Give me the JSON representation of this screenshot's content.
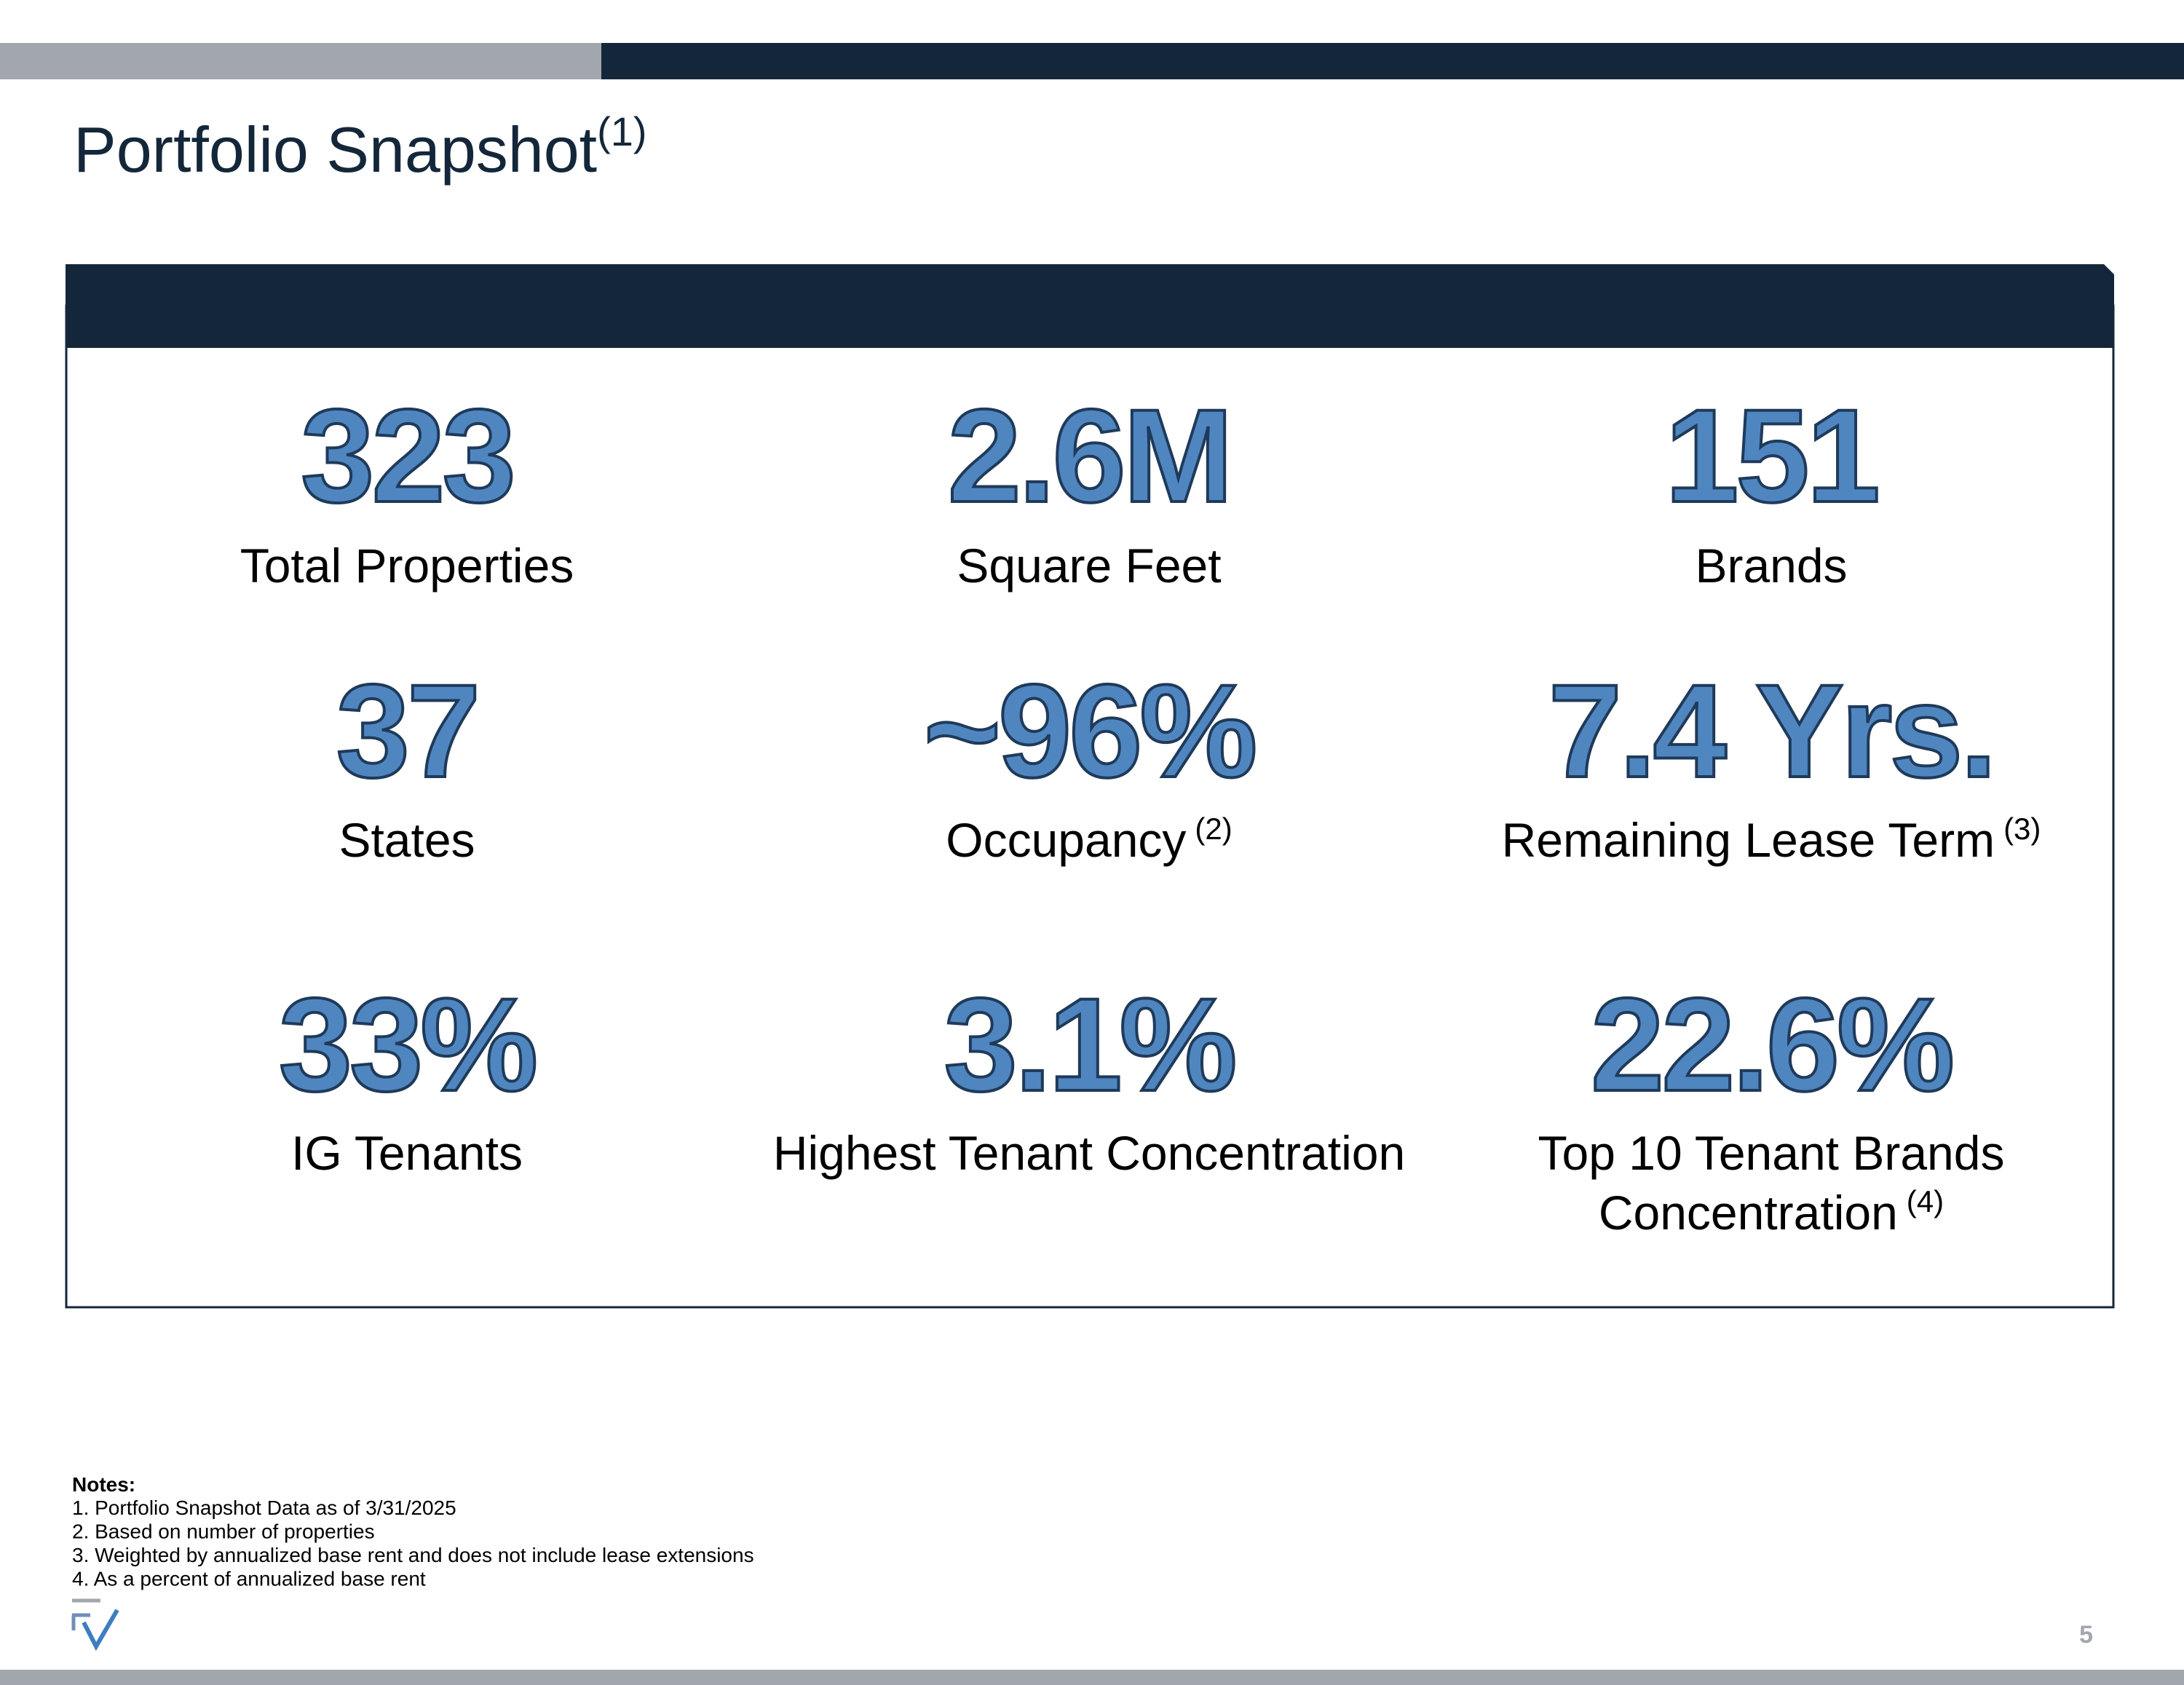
{
  "header": {
    "title": "Portfolio Snapshot",
    "title_note": "(1)"
  },
  "stats": [
    {
      "value": "323",
      "label": [
        "Total Properties"
      ]
    },
    {
      "value": "2.6M",
      "label": [
        "Square Feet"
      ]
    },
    {
      "value": "151",
      "label": [
        "Brands"
      ]
    },
    {
      "value": "37",
      "label": [
        "States"
      ]
    },
    {
      "value": "~96%",
      "label": [
        "Occupancy"
      ],
      "note": "(2)"
    },
    {
      "value": "7.4 Yrs.",
      "label": [
        "Remaining Lease Term"
      ],
      "note": "(3)"
    },
    {
      "value": "33%",
      "label": [
        "IG Tenants"
      ]
    },
    {
      "value": "3.1%",
      "label": [
        "Highest Tenant Concentration"
      ]
    },
    {
      "value": "22.6%",
      "label": [
        "Top 10 Tenant Brands",
        "Concentration"
      ],
      "note": "(4)"
    }
  ],
  "notes": {
    "heading": "Notes:",
    "items": [
      "1. Portfolio Snapshot Data as of 3/31/2025",
      "2. Based on number of properties",
      "3. Weighted by annualized base rent and does not include lease extensions",
      "4. As a percent of annualized base rent"
    ]
  },
  "footer": {
    "page_number": "5"
  }
}
